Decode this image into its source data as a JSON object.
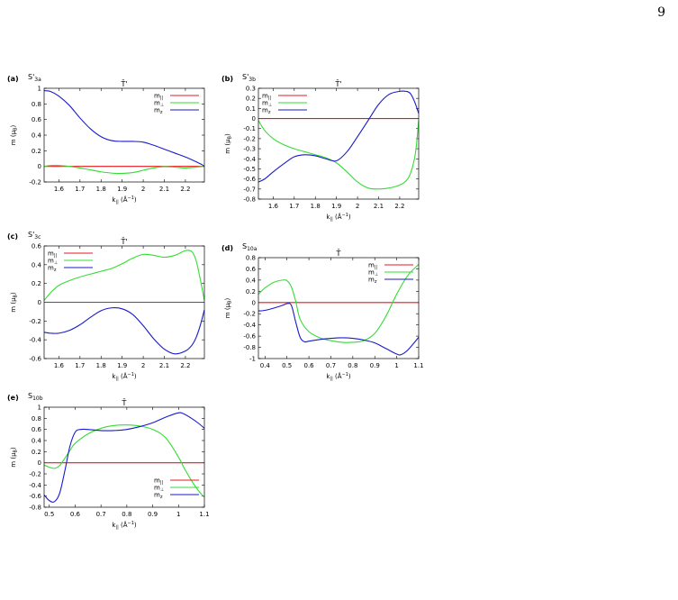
{
  "page": {
    "number": "9"
  },
  "colors": {
    "m_par": "#e41a1c",
    "m_perp": "#33dd33",
    "m_z": "#1a1acc"
  },
  "common": {
    "ylabel_main": "m (μ",
    "ylabel_sub": "B",
    "ylabel_end": ")",
    "xlabel_main": "k",
    "xlabel_sub": "||",
    "xlabel_unit": " (Å",
    "xlabel_exp": "−1",
    "xlabel_end": ")",
    "legend": [
      {
        "key": "par",
        "main": "m",
        "sub": "||"
      },
      {
        "key": "perp",
        "main": "m",
        "sub": "⊥"
      },
      {
        "key": "z",
        "main": "m",
        "sub": "z"
      }
    ]
  },
  "chart_data": [
    {
      "type": "line",
      "panel": "(a)",
      "state": "S'",
      "state_sub": "3a",
      "point": "T̄'",
      "xlim": [
        1.53,
        2.29
      ],
      "ylim": [
        -0.2,
        1.0
      ],
      "xticks": [
        "1.6",
        "1.7",
        "1.8",
        "1.9",
        "2",
        "2.1",
        "2.2"
      ],
      "xtick_values": [
        1.6,
        1.7,
        1.8,
        1.9,
        2.0,
        2.1,
        2.2
      ],
      "yticks": [
        "-0.2",
        "0",
        "0.2",
        "0.4",
        "0.6",
        "0.8",
        "1"
      ],
      "ytick_values": [
        -0.2,
        0,
        0.2,
        0.4,
        0.6,
        0.8,
        1
      ],
      "legend_position": "top-right",
      "series": [
        {
          "name": "m_||",
          "key": "par",
          "x": [
            1.53,
            2.29
          ],
          "y": [
            0,
            0
          ]
        },
        {
          "name": "m_⊥",
          "key": "perp",
          "x": [
            1.53,
            1.58,
            1.65,
            1.72,
            1.8,
            1.87,
            1.9,
            1.95,
            2.0,
            2.05,
            2.1,
            2.15,
            2.2,
            2.25,
            2.29
          ],
          "y": [
            0.0,
            0.015,
            0.0,
            -0.03,
            -0.07,
            -0.09,
            -0.09,
            -0.08,
            -0.05,
            -0.02,
            -0.005,
            -0.01,
            -0.02,
            -0.01,
            0.0
          ]
        },
        {
          "name": "m_z",
          "key": "z",
          "x": [
            1.53,
            1.56,
            1.6,
            1.65,
            1.7,
            1.75,
            1.8,
            1.85,
            1.9,
            1.95,
            2.0,
            2.05,
            2.1,
            2.15,
            2.2,
            2.25,
            2.28,
            2.29
          ],
          "y": [
            0.97,
            0.96,
            0.9,
            0.78,
            0.62,
            0.48,
            0.38,
            0.33,
            0.32,
            0.32,
            0.31,
            0.27,
            0.22,
            0.17,
            0.12,
            0.06,
            0.02,
            0.0
          ]
        }
      ]
    },
    {
      "type": "line",
      "panel": "(b)",
      "state": "S'",
      "state_sub": "3b",
      "point": "T̄'",
      "xlim": [
        1.53,
        2.29
      ],
      "ylim": [
        -0.8,
        0.3
      ],
      "xticks": [
        "1.6",
        "1.7",
        "1.8",
        "1.9",
        "2",
        "2.1",
        "2.2"
      ],
      "xtick_values": [
        1.6,
        1.7,
        1.8,
        1.9,
        2.0,
        2.1,
        2.2
      ],
      "yticks": [
        "-0.8",
        "-0.7",
        "-0.6",
        "-0.5",
        "-0.4",
        "-0.3",
        "-0.2",
        "-0.1",
        "0",
        "0.1",
        "0.2",
        "0.3"
      ],
      "ytick_values": [
        -0.8,
        -0.7,
        -0.6,
        -0.5,
        -0.4,
        -0.3,
        -0.2,
        -0.1,
        0,
        0.1,
        0.2,
        0.3
      ],
      "legend_position": "top-left",
      "series": [
        {
          "name": "m_||",
          "key": "par",
          "x": [
            1.53,
            2.29
          ],
          "y": [
            0,
            0
          ]
        },
        {
          "name": "m_⊥",
          "key": "perp",
          "x": [
            1.53,
            1.56,
            1.6,
            1.65,
            1.7,
            1.75,
            1.8,
            1.85,
            1.9,
            1.95,
            2.0,
            2.05,
            2.1,
            2.15,
            2.2,
            2.23,
            2.25,
            2.27,
            2.28,
            2.29
          ],
          "y": [
            -0.02,
            -0.12,
            -0.2,
            -0.26,
            -0.3,
            -0.33,
            -0.36,
            -0.39,
            -0.44,
            -0.53,
            -0.63,
            -0.69,
            -0.7,
            -0.69,
            -0.66,
            -0.62,
            -0.55,
            -0.4,
            -0.25,
            -0.02
          ]
        },
        {
          "name": "m_z",
          "key": "z",
          "x": [
            1.53,
            1.56,
            1.6,
            1.65,
            1.7,
            1.75,
            1.8,
            1.85,
            1.9,
            1.95,
            2.0,
            2.05,
            2.1,
            2.15,
            2.2,
            2.23,
            2.25,
            2.27,
            2.29
          ],
          "y": [
            -0.63,
            -0.6,
            -0.53,
            -0.45,
            -0.38,
            -0.36,
            -0.37,
            -0.4,
            -0.42,
            -0.33,
            -0.18,
            -0.02,
            0.14,
            0.24,
            0.27,
            0.27,
            0.25,
            0.17,
            0.05
          ]
        }
      ]
    },
    {
      "type": "line",
      "panel": "(c)",
      "state": "S'",
      "state_sub": "3c",
      "point": "T̄'",
      "xlim": [
        1.53,
        2.29
      ],
      "ylim": [
        -0.6,
        0.6
      ],
      "xticks": [
        "1.6",
        "1.7",
        "1.8",
        "1.9",
        "2",
        "2.1",
        "2.2"
      ],
      "xtick_values": [
        1.6,
        1.7,
        1.8,
        1.9,
        2.0,
        2.1,
        2.2
      ],
      "yticks": [
        "-0.6",
        "-0.4",
        "-0.2",
        "0",
        "0.2",
        "0.4",
        "0.6"
      ],
      "ytick_values": [
        -0.6,
        -0.4,
        -0.2,
        0,
        0.2,
        0.4,
        0.6
      ],
      "legend_position": "top-left",
      "series": [
        {
          "name": "m_||",
          "key": "par",
          "x": [
            1.53,
            2.29
          ],
          "y": [
            0,
            0
          ]
        },
        {
          "name": "m_⊥",
          "key": "perp",
          "x": [
            1.53,
            1.56,
            1.6,
            1.65,
            1.7,
            1.75,
            1.8,
            1.85,
            1.9,
            1.95,
            2.0,
            2.05,
            2.1,
            2.15,
            2.2,
            2.23,
            2.25,
            2.27,
            2.29
          ],
          "y": [
            0.02,
            0.1,
            0.18,
            0.23,
            0.27,
            0.3,
            0.33,
            0.36,
            0.41,
            0.47,
            0.51,
            0.5,
            0.48,
            0.5,
            0.55,
            0.54,
            0.45,
            0.25,
            0.02
          ]
        },
        {
          "name": "m_z",
          "key": "z",
          "x": [
            1.53,
            1.56,
            1.6,
            1.65,
            1.7,
            1.75,
            1.8,
            1.85,
            1.9,
            1.95,
            2.0,
            2.05,
            2.1,
            2.15,
            2.2,
            2.23,
            2.25,
            2.27,
            2.29
          ],
          "y": [
            -0.32,
            -0.33,
            -0.33,
            -0.3,
            -0.24,
            -0.16,
            -0.09,
            -0.06,
            -0.07,
            -0.13,
            -0.25,
            -0.39,
            -0.5,
            -0.55,
            -0.52,
            -0.46,
            -0.38,
            -0.25,
            -0.08
          ]
        }
      ]
    },
    {
      "type": "line",
      "panel": "(d)",
      "state": "S",
      "state_sub": "10a",
      "point": "T̄",
      "xlim": [
        0.37,
        1.1
      ],
      "ylim": [
        -1.0,
        0.8
      ],
      "xticks": [
        "0.4",
        "0.5",
        "0.6",
        "0.7",
        "0.8",
        "0.9",
        "1",
        "1.1"
      ],
      "xtick_values": [
        0.4,
        0.5,
        0.6,
        0.7,
        0.8,
        0.9,
        1.0,
        1.1
      ],
      "yticks": [
        "-1",
        "-0.8",
        "-0.6",
        "-0.4",
        "-0.2",
        "0",
        "0.2",
        "0.4",
        "0.6",
        "0.8"
      ],
      "ytick_values": [
        -1,
        -0.8,
        -0.6,
        -0.4,
        -0.2,
        0,
        0.2,
        0.4,
        0.6,
        0.8
      ],
      "legend_position": "top-right",
      "series": [
        {
          "name": "m_||",
          "key": "par",
          "x": [
            0.37,
            1.1
          ],
          "y": [
            0,
            0
          ]
        },
        {
          "name": "m_⊥",
          "key": "perp",
          "x": [
            0.37,
            0.4,
            0.44,
            0.48,
            0.5,
            0.52,
            0.54,
            0.56,
            0.6,
            0.65,
            0.7,
            0.75,
            0.8,
            0.85,
            0.9,
            0.95,
            1.0,
            1.05,
            1.1
          ],
          "y": [
            0.15,
            0.26,
            0.36,
            0.4,
            0.39,
            0.28,
            0.02,
            -0.3,
            -0.52,
            -0.63,
            -0.68,
            -0.71,
            -0.71,
            -0.68,
            -0.55,
            -0.25,
            0.15,
            0.48,
            0.68
          ]
        },
        {
          "name": "m_z",
          "key": "z",
          "x": [
            0.37,
            0.4,
            0.44,
            0.48,
            0.5,
            0.52,
            0.54,
            0.56,
            0.58,
            0.6,
            0.65,
            0.7,
            0.75,
            0.8,
            0.85,
            0.9,
            0.95,
            1.0,
            1.02,
            1.05,
            1.1
          ],
          "y": [
            -0.15,
            -0.14,
            -0.1,
            -0.05,
            -0.02,
            -0.05,
            -0.35,
            -0.62,
            -0.7,
            -0.69,
            -0.66,
            -0.64,
            -0.63,
            -0.64,
            -0.67,
            -0.72,
            -0.82,
            -0.92,
            -0.93,
            -0.85,
            -0.62
          ]
        }
      ]
    },
    {
      "type": "line",
      "panel": "(e)",
      "state": "S",
      "state_sub": "10b",
      "point": "T̄",
      "xlim": [
        0.48,
        1.1
      ],
      "ylim": [
        -0.8,
        1.0
      ],
      "xticks": [
        "0.5",
        "0.6",
        "0.7",
        "0.8",
        "0.9",
        "1",
        "1.1"
      ],
      "xtick_values": [
        0.5,
        0.6,
        0.7,
        0.8,
        0.9,
        1.0,
        1.1
      ],
      "yticks": [
        "-0.8",
        "-0.6",
        "-0.4",
        "-0.2",
        "0",
        "0.2",
        "0.4",
        "0.6",
        "0.8",
        "1"
      ],
      "ytick_values": [
        -0.8,
        -0.6,
        -0.4,
        -0.2,
        0,
        0.2,
        0.4,
        0.6,
        0.8,
        1
      ],
      "legend_position": "bottom-right",
      "series": [
        {
          "name": "m_||",
          "key": "par",
          "x": [
            0.48,
            1.1
          ],
          "y": [
            0,
            0
          ]
        },
        {
          "name": "m_⊥",
          "key": "perp",
          "x": [
            0.48,
            0.5,
            0.52,
            0.54,
            0.56,
            0.58,
            0.6,
            0.65,
            0.7,
            0.75,
            0.8,
            0.85,
            0.9,
            0.95,
            1.0,
            1.02,
            1.05,
            1.08,
            1.1
          ],
          "y": [
            -0.04,
            -0.08,
            -0.1,
            -0.05,
            0.08,
            0.22,
            0.35,
            0.52,
            0.62,
            0.67,
            0.68,
            0.66,
            0.6,
            0.45,
            0.1,
            -0.08,
            -0.32,
            -0.52,
            -0.62
          ]
        },
        {
          "name": "m_z",
          "key": "z",
          "x": [
            0.48,
            0.5,
            0.52,
            0.54,
            0.56,
            0.58,
            0.6,
            0.62,
            0.65,
            0.7,
            0.75,
            0.8,
            0.85,
            0.9,
            0.95,
            1.0,
            1.02,
            1.05,
            1.08,
            1.1
          ],
          "y": [
            -0.58,
            -0.68,
            -0.7,
            -0.55,
            -0.15,
            0.3,
            0.55,
            0.6,
            0.6,
            0.58,
            0.58,
            0.6,
            0.65,
            0.72,
            0.82,
            0.9,
            0.88,
            0.8,
            0.7,
            0.62
          ]
        }
      ]
    }
  ]
}
